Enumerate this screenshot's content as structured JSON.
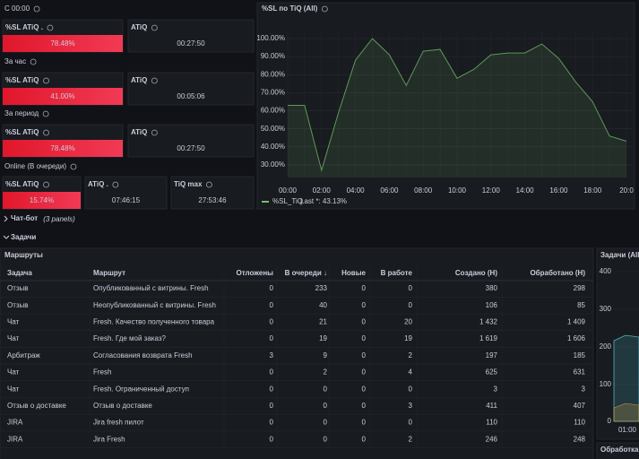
{
  "groups": [
    {
      "title": "С 00:00",
      "stats": [
        {
          "label": "%SL ATiQ .",
          "value": "78.48%"
        },
        {
          "label": "ATiQ",
          "value": "00:27:50"
        }
      ]
    },
    {
      "title": "За час",
      "stats": [
        {
          "label": "%SL ATiQ",
          "value": "41.00%"
        },
        {
          "label": "ATiQ",
          "value": "00:05:06"
        }
      ]
    },
    {
      "title": "За период",
      "stats": [
        {
          "label": "%SL ATiQ",
          "value": "78.48%"
        },
        {
          "label": "ATiQ",
          "value": "00:27:50"
        }
      ]
    },
    {
      "title": "Online (В очереди)",
      "stats": [
        {
          "label": "%SL ATiQ",
          "value": "15.74%"
        },
        {
          "label": "ATiQ .",
          "value": "07:46:15"
        },
        {
          "label": "TiQ max",
          "value": "27:53:46"
        }
      ]
    }
  ],
  "chart_data": {
    "type": "line",
    "title": "%SL по TiQ (All)",
    "categories": [
      "00:00",
      null,
      "02:00",
      null,
      "04:00",
      null,
      "06:00",
      null,
      "08:00",
      null,
      "10:00",
      null,
      "12:00",
      null,
      "14:00",
      null,
      "16:00",
      null,
      "18:00",
      null,
      "20:0"
    ],
    "series": [
      {
        "name": "%SL_TiQ",
        "color": "#73bf69",
        "values": [
          63,
          63,
          27,
          59,
          88,
          100,
          91,
          74,
          93,
          94,
          78,
          83,
          91,
          92,
          92,
          97,
          89,
          76,
          65,
          46,
          43.13
        ]
      }
    ],
    "legend_stat": "Last *: 43.13%",
    "ylim": [
      23,
      100
    ],
    "yticks": [
      {
        "value": 30,
        "label": "30.00%"
      },
      {
        "value": 40,
        "label": "40.00%"
      },
      {
        "value": 50,
        "label": "50.00%"
      },
      {
        "value": 60,
        "label": "60.00%"
      },
      {
        "value": 70,
        "label": "70.00%"
      },
      {
        "value": 80,
        "label": "80.00%"
      },
      {
        "value": 90,
        "label": "90.00%"
      },
      {
        "value": 100,
        "label": "100.00%"
      }
    ],
    "grid": true,
    "legend": "bottom-left"
  },
  "rows": [
    {
      "title": "Чат-бот",
      "note": "(3 panels)"
    },
    {
      "title": "Задачи"
    }
  ],
  "table": {
    "title": "Маршруты",
    "columns": [
      "Задача",
      "Маршрут",
      "Отложены",
      "В очереди ↓",
      "Новые",
      "В работе",
      "Создано (Н)",
      "Обработано (Н)"
    ],
    "rows": [
      [
        "Отзыв",
        "Опубликованный с витрины. Fresh",
        "0",
        "233",
        "0",
        "0",
        "380",
        "298"
      ],
      [
        "Отзыв",
        "Неопубликованный с витрины. Fresh",
        "0",
        "40",
        "0",
        "0",
        "106",
        "85"
      ],
      [
        "Чат",
        "Fresh. Качество полученного товара",
        "0",
        "21",
        "0",
        "20",
        "1 432",
        "1 409"
      ],
      [
        "Чат",
        "Fresh. Где мой заказ?",
        "0",
        "19",
        "0",
        "19",
        "1 619",
        "1 606"
      ],
      [
        "Арбитраж",
        "Согласования возврата Fresh",
        "3",
        "9",
        "0",
        "2",
        "197",
        "185"
      ],
      [
        "Чат",
        "Fresh",
        "0",
        "2",
        "0",
        "4",
        "625",
        "631"
      ],
      [
        "Чат",
        "Fresh. Ограниченный доступ",
        "0",
        "0",
        "0",
        "0",
        "3",
        "3"
      ],
      [
        "Отзыв о доставке",
        "Отзыв о доставке",
        "0",
        "0",
        "0",
        "3",
        "411",
        "407"
      ],
      [
        "JIRA",
        "Jira fresh пилот",
        "0",
        "0",
        "0",
        "0",
        "110",
        "110"
      ],
      [
        "JIRA",
        "Jira Fresh",
        "0",
        "0",
        "0",
        "2",
        "246",
        "248"
      ]
    ]
  },
  "side_panel": {
    "title": "Задачи (All)",
    "yticks": [
      "400",
      "300",
      "200",
      "100",
      "0"
    ],
    "xlabel": "01:00"
  },
  "bottom_panel": {
    "title": "Обработка ч"
  }
}
